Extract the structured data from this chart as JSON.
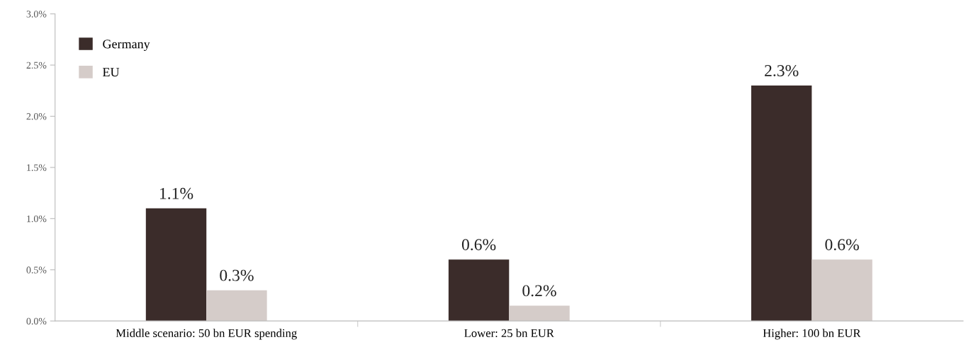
{
  "chart_data": {
    "type": "bar",
    "categories": [
      "Middle scenario: 50 bn EUR spending",
      "Lower: 25 bn EUR",
      "Higher: 100 bn EUR"
    ],
    "series": [
      {
        "name": "Germany",
        "color": "#3b2c2a",
        "values": [
          1.1,
          0.6,
          2.3
        ],
        "value_labels": [
          "1.1%",
          "0.6%",
          "2.3%"
        ]
      },
      {
        "name": "EU",
        "color": "#d5ccc9",
        "values": [
          0.3,
          0.15,
          0.6
        ],
        "value_labels": [
          "0.3%",
          "0.2%",
          "0.6%"
        ]
      }
    ],
    "ylim": [
      0,
      3.0
    ],
    "yticks": [
      {
        "value": 0,
        "label": "0.0%"
      },
      {
        "value": 0.5,
        "label": "0.5%"
      },
      {
        "value": 1.0,
        "label": "1.0%"
      },
      {
        "value": 1.5,
        "label": "1.5%"
      },
      {
        "value": 2.0,
        "label": "2.0%"
      },
      {
        "value": 2.5,
        "label": "2.5%"
      },
      {
        "value": 3.0,
        "label": "3.0%"
      }
    ],
    "grid": false,
    "legend": "top left"
  }
}
